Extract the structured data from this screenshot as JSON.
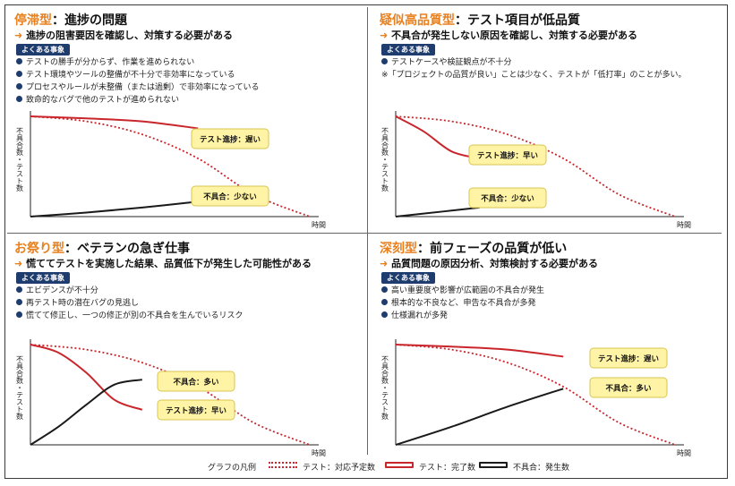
{
  "axis": {
    "y": "不具合数・テスト数",
    "x": "時間"
  },
  "badge": "よくある事象",
  "colors": {
    "accent": "#e8801e",
    "navy": "#1f3c6e",
    "planned": "#c9262c",
    "completed": "#c9262c",
    "defects": "#1a1a1a",
    "callout_fill": "#fff3a6",
    "callout_stroke": "#d8c550"
  },
  "panels": [
    {
      "title_type": "停滞型",
      "title_rest": "：進捗の問題",
      "goal": "進捗の阻害要因を確認し、対策する必要がある",
      "events": [
        "テストの勝手が分からず、作業を進められない",
        "テスト環境やツールの整備が不十分で非効率になっている",
        "プロセスやルールが未整備（または過剰）で非効率になっている",
        "致命的なバグで他のテストが進められない"
      ],
      "note": ""
    },
    {
      "title_type": "疑似高品質型",
      "title_rest": "：テスト項目が低品質",
      "goal": "不具合が発生しない原因を確認し、対策する必要がある",
      "events": [
        "テストケースや検証観点が不十分"
      ],
      "note": "※「プロジェクトの品質が良い」ことは少なく、テストが「低打率」のことが多い。"
    },
    {
      "title_type": "お祭り型",
      "title_rest": "：ベテランの急ぎ仕事",
      "goal": "慌ててテストを実施した結果、品質低下が発生した可能性がある",
      "events": [
        "エビデンスが不十分",
        "再テスト時の潜在バグの見逃し",
        "慌てて修正し、一つの修正が別の不具合を生んでいるリスク"
      ],
      "note": ""
    },
    {
      "title_type": "深刻型",
      "title_rest": "：前フェーズの品質が低い",
      "goal": "品質問題の原因分析、対策検討する必要がある",
      "events": [
        "高い重要度や影響が広範囲の不具合が発生",
        "根本的な不良など、申告な不具合が多発",
        "仕様漏れが多発"
      ],
      "note": ""
    }
  ],
  "chart_data": [
    {
      "type": "line",
      "title": "停滞型",
      "xlabel": "時間",
      "ylabel": "不具合数・テスト数",
      "series": [
        {
          "name": "テスト：対応予定数",
          "style": "dotted",
          "x": [
            0,
            0.2,
            0.4,
            0.6,
            0.8,
            1.0
          ],
          "y": [
            100,
            95,
            82,
            58,
            22,
            0
          ]
        },
        {
          "name": "テスト：完了数",
          "style": "solid",
          "x": [
            0,
            0.2,
            0.4,
            0.6
          ],
          "y": [
            100,
            98,
            95,
            88
          ]
        },
        {
          "name": "不具合：発生数",
          "style": "solid",
          "x": [
            0,
            0.2,
            0.4,
            0.6
          ],
          "y": [
            0,
            4,
            9,
            15
          ]
        }
      ],
      "annotations": [
        "テスト進捗：遅い",
        "不具合：少ない"
      ]
    },
    {
      "type": "line",
      "title": "疑似高品質型",
      "xlabel": "時間",
      "ylabel": "不具合数・テスト数",
      "series": [
        {
          "name": "テスト：対応予定数",
          "style": "dotted",
          "x": [
            0,
            0.2,
            0.4,
            0.6,
            0.8,
            1.0
          ],
          "y": [
            100,
            95,
            82,
            58,
            22,
            0
          ]
        },
        {
          "name": "テスト：完了数",
          "style": "solid",
          "x": [
            0,
            0.1,
            0.2,
            0.3
          ],
          "y": [
            100,
            85,
            65,
            58
          ]
        },
        {
          "name": "不具合：発生数",
          "style": "solid",
          "x": [
            0,
            0.1,
            0.2,
            0.3
          ],
          "y": [
            0,
            3,
            6,
            9
          ]
        }
      ],
      "annotations": [
        "テスト進捗：早い",
        "不具合：少ない"
      ]
    },
    {
      "type": "line",
      "title": "お祭り型",
      "xlabel": "時間",
      "ylabel": "不具合数・テスト数",
      "series": [
        {
          "name": "テスト：対応予定数",
          "style": "dotted",
          "x": [
            0,
            0.2,
            0.4,
            0.6,
            0.8,
            1.0
          ],
          "y": [
            100,
            95,
            82,
            58,
            22,
            0
          ]
        },
        {
          "name": "テスト：完了数",
          "style": "solid",
          "x": [
            0,
            0.1,
            0.2,
            0.3,
            0.4
          ],
          "y": [
            100,
            92,
            72,
            45,
            35
          ]
        },
        {
          "name": "不具合：発生数",
          "style": "solid",
          "x": [
            0,
            0.1,
            0.2,
            0.3,
            0.4
          ],
          "y": [
            0,
            18,
            40,
            60,
            65
          ]
        }
      ],
      "annotations": [
        "不具合：多い",
        "テスト進捗：早い"
      ]
    },
    {
      "type": "line",
      "title": "深刻型",
      "xlabel": "時間",
      "ylabel": "不具合数・テスト数",
      "series": [
        {
          "name": "テスト：対応予定数",
          "style": "dotted",
          "x": [
            0,
            0.2,
            0.4,
            0.6,
            0.8,
            1.0
          ],
          "y": [
            100,
            95,
            82,
            58,
            22,
            0
          ]
        },
        {
          "name": "テスト：完了数",
          "style": "solid",
          "x": [
            0,
            0.2,
            0.4,
            0.6
          ],
          "y": [
            100,
            98,
            95,
            88
          ]
        },
        {
          "name": "不具合：発生数",
          "style": "solid",
          "x": [
            0,
            0.2,
            0.4,
            0.6
          ],
          "y": [
            0,
            18,
            38,
            56
          ]
        }
      ],
      "annotations": [
        "テスト進捗：遅い",
        "不具合：多い"
      ]
    }
  ],
  "legend": {
    "title": "グラフの凡例",
    "items": [
      {
        "label": "テスト：対応予定数",
        "style": "dotted"
      },
      {
        "label": "テスト：完了数",
        "style": "solid-red"
      },
      {
        "label": "不具合：発生数",
        "style": "solid-black"
      }
    ]
  }
}
